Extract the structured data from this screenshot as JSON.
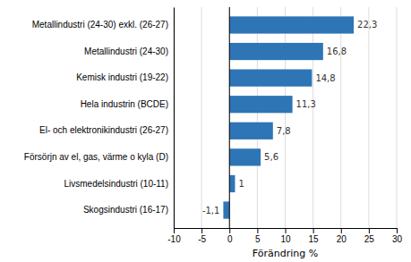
{
  "chart_data": {
    "type": "bar",
    "orientation": "horizontal",
    "categories": [
      "Metallindustri (24-30) exkl. (26-27)",
      "Metallindustri (24-30)",
      "Kemisk industri (19-22)",
      "Hela industrin (BCDE)",
      "El- och elektronikindustri (26-27)",
      "Försörjn av el, gas, värme o kyla (D)",
      "Livsmedelsindustri (10-11)",
      "Skogsindustri (16-17)"
    ],
    "values": [
      22.3,
      16.8,
      14.8,
      11.3,
      7.8,
      5.6,
      1,
      -1.1
    ],
    "value_labels": [
      "22,3",
      "16,8",
      "14,8",
      "11,3",
      "7,8",
      "5,6",
      "1",
      "-1,1"
    ],
    "data_labels": true,
    "color": "#2E75B6",
    "xlabel": "Förändring %",
    "xlim": [
      -10,
      30
    ],
    "xticks": [
      -10,
      -5,
      0,
      5,
      10,
      15,
      20,
      25,
      30
    ],
    "grid": true
  }
}
